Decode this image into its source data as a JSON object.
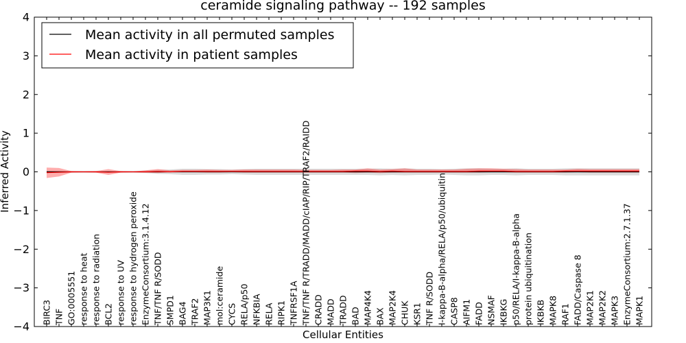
{
  "chart_data": {
    "type": "line",
    "title": "ceramide signaling pathway -- 192 samples",
    "xlabel": "Cellular Entities",
    "ylabel": "Inferred Activity",
    "ylim": [
      -4,
      4
    ],
    "y_ticks": [
      "−4",
      "−3",
      "−2",
      "−1",
      "0",
      "1",
      "2",
      "3",
      "4"
    ],
    "grid": false,
    "legend_position": "top-left",
    "categories": [
      "BIRC3",
      "TNF",
      "GO:0005551",
      "response to heat",
      "response to radiation",
      "BCL2",
      "response to UV",
      "response to hydrogen peroxide",
      "EnzymeConsortium:3.1.4.12",
      "TNF/TNF R/SODD",
      "SMPD1",
      "BAG4",
      "TRAF2",
      "MAP3K1",
      "mol:ceramide",
      "CYCS",
      "RELA/p50",
      "NFKBIA",
      "RELA",
      "RIPK1",
      "TNFRSF1A",
      "TNF/TNF R/TRADD/MADD/cIAP/RIP/TRAF2/RAIDD",
      "CRADD",
      "MADD",
      "TRADD",
      "BAD",
      "MAP4K4",
      "BAX",
      "MAP2K4",
      "CHUK",
      "KSR1",
      "TNF R/SODD",
      "I-kappa-B-alpha/RELA/p50/ubiquitin",
      "CASP8",
      "AIFM1",
      "FADD",
      "NSMAF",
      "IKBKG",
      "p50/RELA/I-kappa-B-alpha",
      "protein ubiquitination",
      "IKBKB",
      "MAPK8",
      "RAF1",
      "FADD/Caspase 8",
      "MAP2K1",
      "MAP2K2",
      "MAPK3",
      "EnzymeConsortium:2.7.1.37",
      "MAPK1"
    ],
    "series": [
      {
        "name": "Mean activity in all permuted samples",
        "color": "#000000",
        "values": [
          0,
          0,
          0,
          0,
          0,
          0,
          0,
          0,
          0,
          0,
          0,
          0,
          0,
          0,
          0,
          0,
          0,
          0,
          0,
          0,
          0,
          0,
          0,
          0,
          0,
          0,
          0,
          0,
          0,
          0,
          0,
          0,
          0,
          0,
          0,
          0,
          0,
          0,
          0,
          0,
          0,
          0,
          0,
          0,
          0,
          0,
          0,
          0,
          0
        ],
        "band_low": [
          -0.03,
          -0.03,
          -0.02,
          -0.02,
          -0.02,
          -0.02,
          -0.02,
          -0.02,
          -0.03,
          -0.05,
          -0.06,
          -0.08,
          -0.08,
          -0.07,
          -0.07,
          -0.06,
          -0.07,
          -0.08,
          -0.08,
          -0.08,
          -0.08,
          -0.08,
          -0.08,
          -0.08,
          -0.08,
          -0.08,
          -0.08,
          -0.09,
          -0.08,
          -0.09,
          -0.08,
          -0.08,
          -0.07,
          -0.08,
          -0.09,
          -0.09,
          -0.08,
          -0.08,
          -0.09,
          -0.08,
          -0.08,
          -0.08,
          -0.09,
          -0.09,
          -0.09,
          -0.09,
          -0.09,
          -0.09,
          -0.09
        ],
        "band_high": [
          0.03,
          0.03,
          0.02,
          0.02,
          0.02,
          0.02,
          0.02,
          0.02,
          0.03,
          0.05,
          0.06,
          0.08,
          0.08,
          0.07,
          0.07,
          0.06,
          0.07,
          0.08,
          0.08,
          0.08,
          0.08,
          0.08,
          0.08,
          0.08,
          0.08,
          0.08,
          0.08,
          0.09,
          0.08,
          0.09,
          0.08,
          0.08,
          0.07,
          0.08,
          0.09,
          0.09,
          0.08,
          0.08,
          0.09,
          0.08,
          0.08,
          0.08,
          0.09,
          0.09,
          0.09,
          0.09,
          0.09,
          0.09,
          0.09
        ]
      },
      {
        "name": "Mean activity in patient samples",
        "color": "#ff0000",
        "values": [
          -0.02,
          -0.01,
          0,
          0,
          0,
          -0.01,
          0,
          0,
          0,
          0.01,
          0,
          0.01,
          0.01,
          0.01,
          0.01,
          0.01,
          0.01,
          0.01,
          0.01,
          0.01,
          0.01,
          0.01,
          0.01,
          0.01,
          0.01,
          0.02,
          0.02,
          0.01,
          0.02,
          0.01,
          0.01,
          0.01,
          0.01,
          0.01,
          0.01,
          0.02,
          0.02,
          0.02,
          0.01,
          0.01,
          0.01,
          0.01,
          0.02,
          0.02,
          0.02,
          0.02,
          0.02,
          0.02,
          0.02
        ],
        "band_low": [
          -0.16,
          -0.12,
          -0.02,
          -0.01,
          -0.02,
          -0.08,
          -0.02,
          -0.01,
          -0.02,
          -0.03,
          -0.01,
          -0.01,
          -0.01,
          -0.02,
          -0.02,
          -0.01,
          -0.02,
          -0.02,
          -0.02,
          -0.02,
          -0.02,
          -0.02,
          -0.02,
          -0.02,
          -0.02,
          -0.03,
          -0.02,
          -0.03,
          -0.02,
          -0.02,
          -0.02,
          -0.02,
          -0.02,
          -0.02,
          -0.02,
          -0.02,
          -0.01,
          -0.01,
          -0.02,
          -0.02,
          -0.02,
          -0.02,
          -0.02,
          -0.01,
          -0.02,
          -0.02,
          -0.02,
          -0.02,
          -0.02
        ],
        "band_high": [
          0.11,
          0.1,
          0.02,
          0.01,
          0.02,
          0.07,
          0.02,
          0.01,
          0.04,
          0.07,
          0.04,
          0.05,
          0.05,
          0.06,
          0.05,
          0.05,
          0.06,
          0.06,
          0.06,
          0.06,
          0.06,
          0.05,
          0.05,
          0.05,
          0.06,
          0.06,
          0.09,
          0.06,
          0.07,
          0.09,
          0.06,
          0.06,
          0.06,
          0.06,
          0.08,
          0.09,
          0.09,
          0.08,
          0.07,
          0.06,
          0.06,
          0.06,
          0.06,
          0.08,
          0.07,
          0.07,
          0.07,
          0.07,
          0.07
        ]
      }
    ]
  }
}
